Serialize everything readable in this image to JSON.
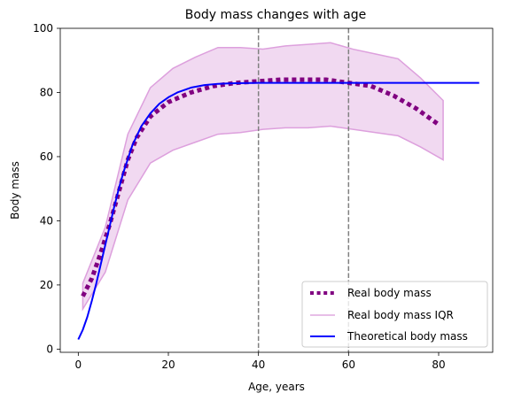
{
  "chart_data": {
    "type": "line",
    "title": "Body mass changes with age",
    "xlabel": "Age, years",
    "ylabel": "Body mass",
    "xlim": [
      -4,
      92
    ],
    "ylim": [
      -1,
      100
    ],
    "xticks": [
      0,
      20,
      40,
      60,
      80
    ],
    "yticks": [
      0,
      20,
      40,
      60,
      80,
      100
    ],
    "grid": false,
    "legend_position": "lower-right",
    "vlines": [
      {
        "x": 40,
        "color": "#808080",
        "style": "dashed"
      },
      {
        "x": 60,
        "color": "#808080",
        "style": "dashed"
      }
    ],
    "series": [
      {
        "name": "Real body mass",
        "kind": "line",
        "color": "#800080",
        "style": "dotted",
        "x": [
          1,
          3,
          5,
          7,
          9,
          11,
          13,
          16,
          20,
          25,
          30,
          35,
          40,
          45,
          50,
          55,
          60,
          65,
          70,
          75,
          80
        ],
        "y": [
          16.5,
          22,
          30,
          39,
          49,
          59,
          66,
          72.5,
          77,
          80,
          82,
          83,
          83.5,
          84,
          84,
          84,
          83,
          82,
          79,
          75,
          70
        ]
      },
      {
        "name": "Real body mass IQR",
        "kind": "band",
        "color": "#dda0dd",
        "fill_opacity": 0.4,
        "x": [
          1,
          6,
          11,
          16,
          21,
          26,
          31,
          36,
          41,
          46,
          51,
          56,
          61,
          66,
          71,
          76,
          81
        ],
        "lower": [
          12.5,
          24,
          46.5,
          58,
          62,
          64.5,
          67,
          67.5,
          68.5,
          69,
          69,
          69.5,
          68.5,
          67.5,
          66.5,
          63,
          59
        ],
        "upper": [
          20.5,
          38,
          67,
          81.5,
          87.5,
          91,
          94,
          94,
          93.5,
          94.5,
          95,
          95.5,
          93.5,
          92,
          90.5,
          84.5,
          77.5
        ]
      },
      {
        "name": "Theoretical body mass",
        "kind": "line",
        "color": "#0000ff",
        "style": "solid",
        "x": [
          0,
          1,
          2,
          3,
          4,
          5,
          6,
          7,
          8,
          9,
          10,
          12,
          14,
          16,
          18,
          20,
          22,
          25,
          28,
          31,
          35,
          40,
          45,
          50,
          60,
          70,
          80,
          89
        ],
        "y": [
          3,
          6,
          10,
          15,
          20.5,
          26.5,
          32.5,
          38.5,
          44.5,
          50,
          55,
          63.5,
          69.5,
          73.5,
          76.5,
          78.5,
          80,
          81.5,
          82.3,
          82.7,
          82.9,
          83,
          83,
          83,
          83,
          83,
          83,
          83
        ]
      }
    ]
  }
}
